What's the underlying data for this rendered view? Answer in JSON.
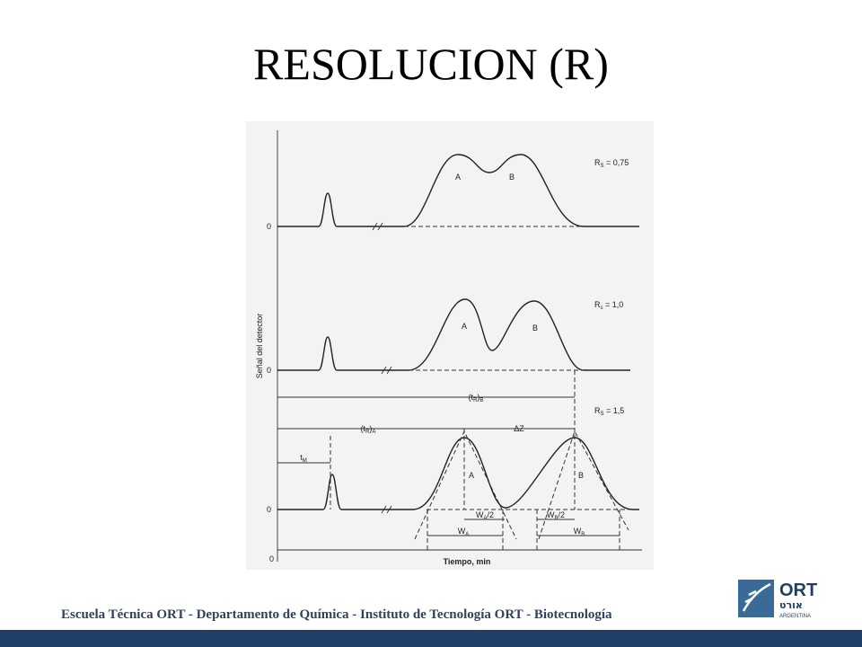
{
  "header": {
    "title": "RESOLUCION (R)"
  },
  "figure": {
    "y_axis_label": "Señal del detector",
    "x_axis_label": "Tiempo, min",
    "zero_labels": [
      "0",
      "0",
      "0",
      "0"
    ],
    "panels": [
      {
        "r_symbol": "R",
        "r_sub": "S",
        "r_value": " = 0,75",
        "peak_a": "A",
        "peak_b": "B"
      },
      {
        "r_symbol": "R",
        "r_sub": "s",
        "r_value": " = 1,0",
        "peak_a": "A",
        "peak_b": "B"
      },
      {
        "r_symbol": "R",
        "r_sub": "S",
        "r_value": " = 1,5",
        "peak_a": "A",
        "peak_b": "B"
      }
    ],
    "annotations": {
      "tr_b": {
        "open": "(t",
        "sub": "R",
        "close": ")",
        "sub2": "B"
      },
      "tr_a": {
        "open": "(t",
        "sub": "R",
        "close": ")",
        "sub2": "A"
      },
      "delta_z": "ΔZ",
      "tm": {
        "main": "t",
        "sub": "M"
      },
      "wa_half": {
        "main": "W",
        "sub": "A",
        "rest": "/2"
      },
      "wb_half": {
        "main": "W",
        "sub": "B",
        "rest": "/2"
      },
      "wa": {
        "main": "W",
        "sub": "A"
      },
      "wb": {
        "main": "W",
        "sub": "B"
      }
    }
  },
  "footer": {
    "text": "Escuela Técnica ORT - Departamento de Química - Instituto de Tecnología ORT - Biotecnología"
  },
  "logo": {
    "name": "ORT",
    "hebrew": "אורט",
    "country": "ARGENTINA"
  }
}
